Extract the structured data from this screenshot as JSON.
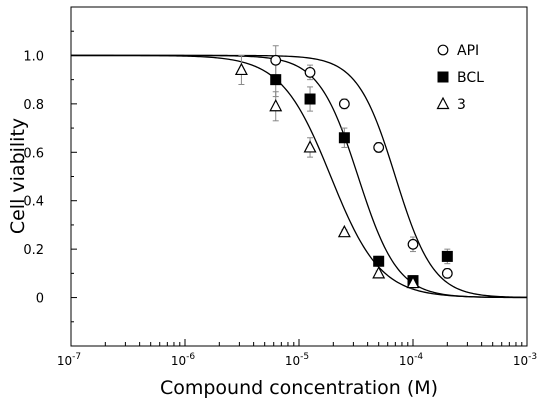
{
  "chart_data": {
    "type": "scatter",
    "title": "",
    "xlabel": "Compound concentration (M)",
    "ylabel": "Cell viability",
    "x_scale": "log",
    "xlim": [
      1e-07,
      0.001
    ],
    "ylim": [
      -0.2,
      1.2
    ],
    "x_ticks": [
      {
        "value": 1e-07,
        "base": "10",
        "exp": "-7"
      },
      {
        "value": 1e-06,
        "base": "10",
        "exp": "-6"
      },
      {
        "value": 1e-05,
        "base": "10",
        "exp": "-5"
      },
      {
        "value": 0.0001,
        "base": "10",
        "exp": "-4"
      },
      {
        "value": 0.001,
        "base": "10",
        "exp": "-3"
      }
    ],
    "y_ticks": [
      {
        "value": 0.0,
        "label": "0"
      },
      {
        "value": 0.2,
        "label": "0.2"
      },
      {
        "value": 0.4,
        "label": "0.4"
      },
      {
        "value": 0.6,
        "label": "0.6"
      },
      {
        "value": 0.8,
        "label": "0.8"
      },
      {
        "value": 1.0,
        "label": "1.0"
      }
    ],
    "grid": false,
    "legend_position": "top-right",
    "series": [
      {
        "name": "API",
        "marker": "open-circle",
        "x": [
          6.25e-06,
          1.25e-05,
          2.5e-05,
          5e-05,
          0.0001,
          0.0002
        ],
        "y": [
          0.98,
          0.93,
          0.8,
          0.62,
          0.22,
          0.1
        ],
        "err": [
          0.06,
          0.03,
          0.02,
          0.02,
          0.03,
          0.02
        ],
        "fit": {
          "ic50": 7e-05,
          "hill": 2.6
        }
      },
      {
        "name": "BCL",
        "marker": "filled-square",
        "x": [
          6.25e-06,
          1.25e-05,
          2.5e-05,
          5e-05,
          0.0001,
          0.0002
        ],
        "y": [
          0.9,
          0.82,
          0.66,
          0.15,
          0.07,
          0.17
        ],
        "err": [
          0.07,
          0.05,
          0.04,
          0.02,
          0.02,
          0.03
        ],
        "fit": {
          "ic50": 3.3e-05,
          "hill": 2.5
        }
      },
      {
        "name": "3",
        "marker": "open-triangle",
        "x": [
          3.125e-06,
          6.25e-06,
          1.25e-05,
          2.5e-05,
          5e-05,
          0.0001
        ],
        "y": [
          0.94,
          0.79,
          0.62,
          0.27,
          0.1,
          0.06
        ],
        "err": [
          0.06,
          0.06,
          0.04,
          0.01,
          0.01,
          0.02
        ],
        "fit": {
          "ic50": 1.9e-05,
          "hill": 2.0
        }
      }
    ]
  }
}
